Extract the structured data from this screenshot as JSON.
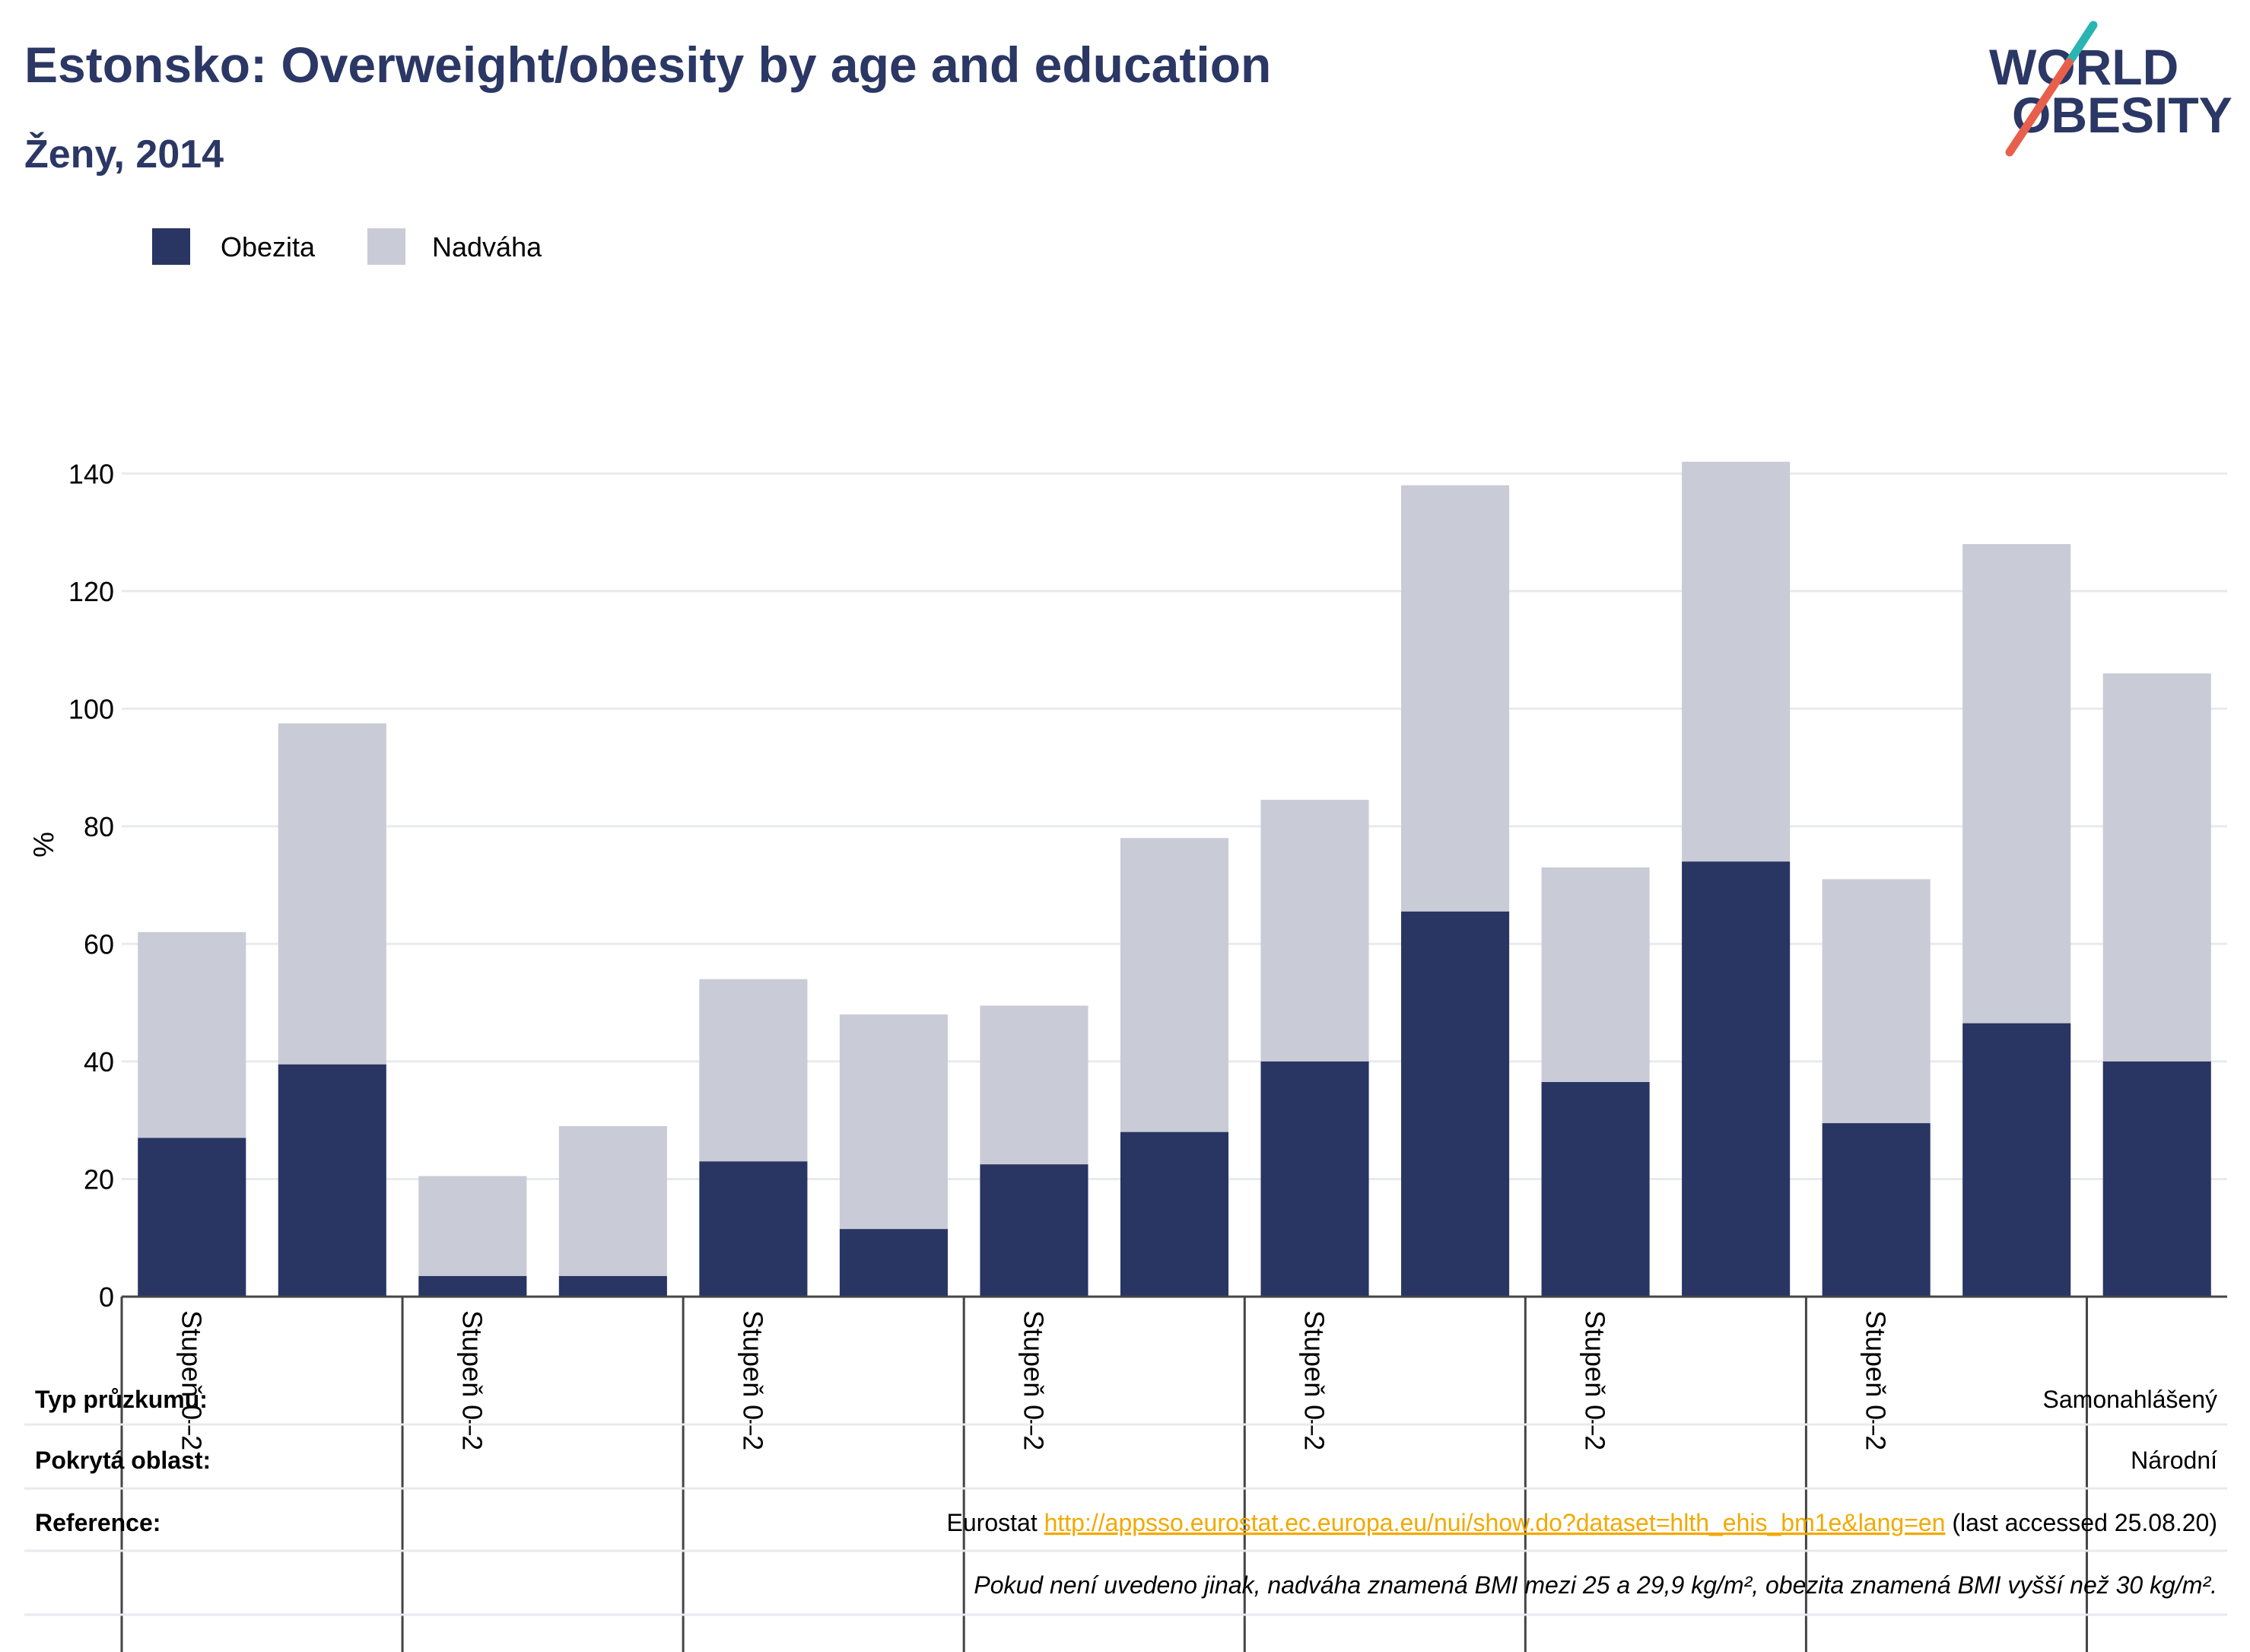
{
  "title": "Estonsko: Overweight/obesity by age and education",
  "subtitle": "Ženy, 2014",
  "logo": {
    "line1": "WORLD",
    "line2": "OBESITY"
  },
  "colors": {
    "title": "#2b3764",
    "obesity": "#293562",
    "overweight": "#c9cbd6",
    "grid": "#e9eaf0",
    "logo_slash_red": "#e8604c",
    "logo_slash_teal": "#2ab5b2",
    "link": "#f2a900"
  },
  "legend": [
    {
      "label": "Obezita",
      "color": "#293562"
    },
    {
      "label": "Nadváha",
      "color": "#c9cbd6"
    }
  ],
  "chart_data": {
    "type": "bar",
    "stacked": true,
    "ylabel": "%",
    "ylim": [
      0,
      150
    ],
    "yticks": [
      0,
      20,
      40,
      60,
      80,
      100,
      120,
      140
    ],
    "grid": true,
    "legend_position": "top-left",
    "categories": [
      "Stupeň 0–2",
      "",
      "Stupeň 0–2",
      "",
      "Stupeň 0–2",
      "",
      "Stupeň 0–2",
      "",
      "Stupeň 0–2",
      "",
      "Stupeň 0–2",
      "",
      "Stupeň 0–2",
      "",
      ""
    ],
    "series": [
      {
        "name": "Obezita",
        "values": [
          27,
          39.5,
          3.5,
          3.5,
          23,
          11.5,
          22.5,
          28,
          40,
          65.5,
          36.5,
          74,
          29.5,
          46.5,
          40
        ]
      },
      {
        "name": "Nadváha",
        "values": [
          35,
          58,
          17,
          25.5,
          31,
          36.5,
          27,
          50,
          44.5,
          72.5,
          36.5,
          68,
          41.5,
          81.5,
          66
        ]
      }
    ]
  },
  "footer": {
    "rows": [
      {
        "label": "Typ průzkumu:",
        "value": "Samonahlášený"
      },
      {
        "label": "Pokrytá oblast:",
        "value": "Národní"
      },
      {
        "label": "Reference:",
        "prefix": "Eurostat ",
        "link": "http://appsso.eurostat.ec.europa.eu/nui/show.do?dataset=hlth_ehis_bm1e&lang=en",
        "suffix": " (last accessed 25.08.20)"
      }
    ],
    "note": "Pokud není uvedeno jinak, nadváha znamená BMI mezi 25 a 29,9 kg/m², obezita znamená BMI vyšší než 30 kg/m²."
  }
}
